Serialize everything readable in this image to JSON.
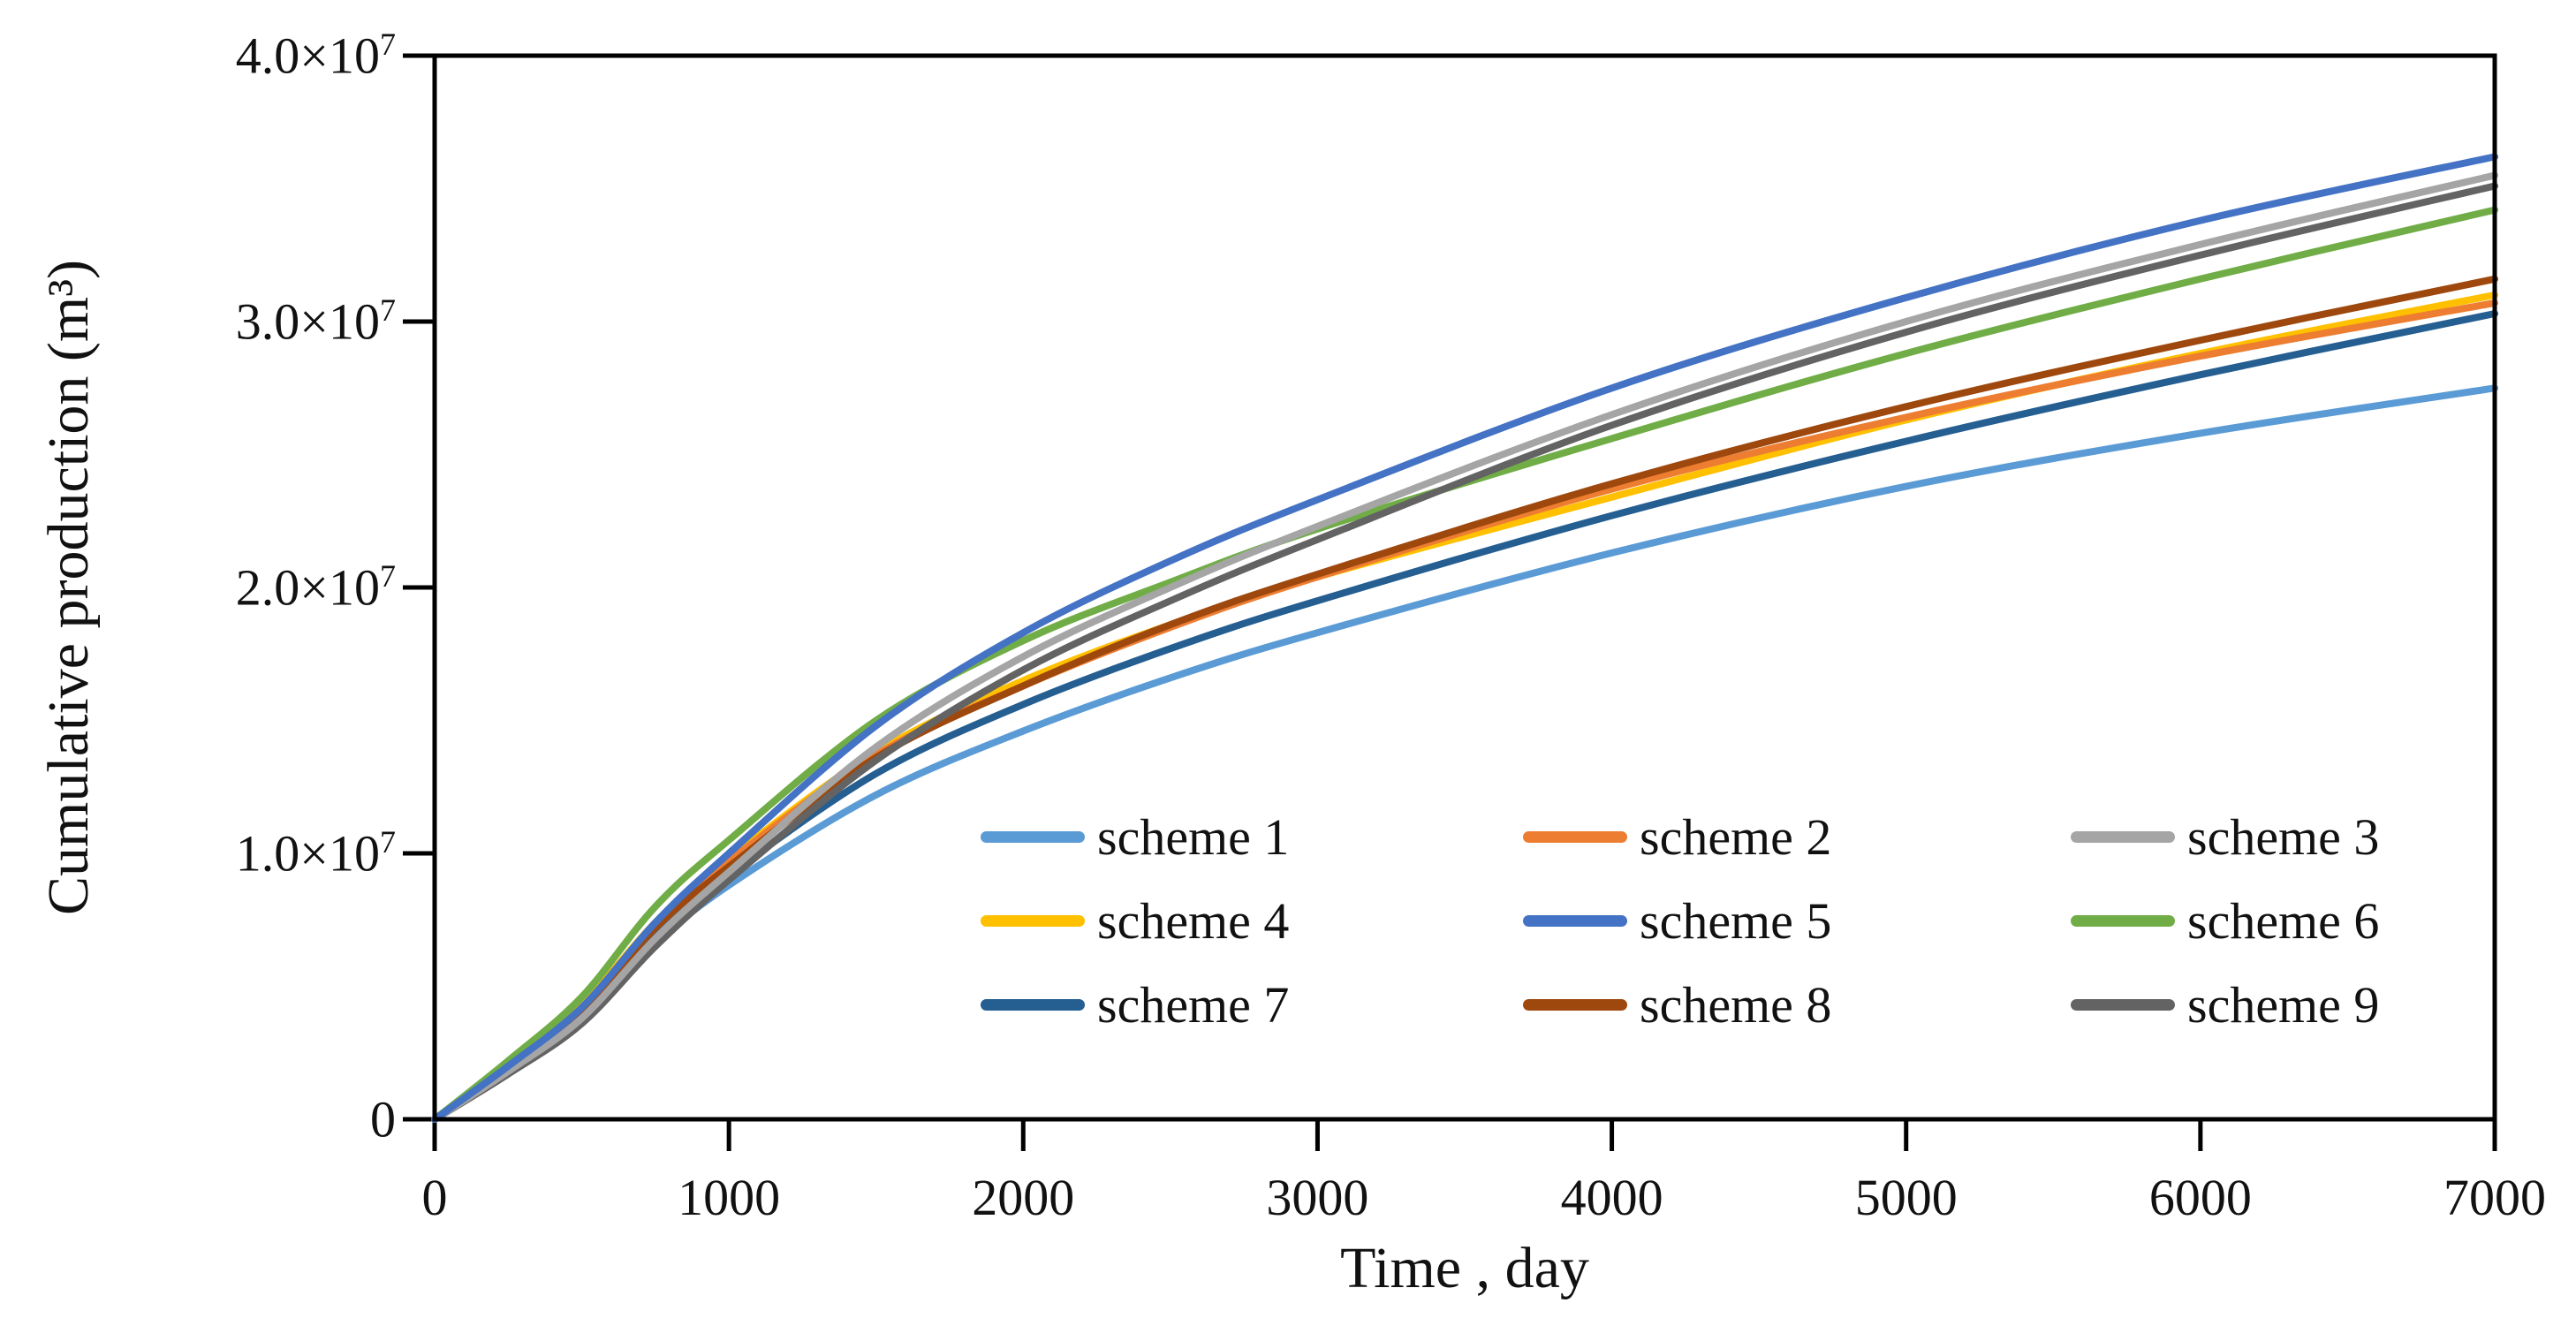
{
  "chart_data": {
    "type": "line",
    "title": "",
    "xlabel": "Time , day",
    "ylabel": "Cumulative production (m³)",
    "xlim": [
      0,
      7000
    ],
    "ylim": [
      0,
      40000000
    ],
    "grid": false,
    "legend_position": "inside plot, lower-middle, 3 columns, row-major",
    "axis_color": "#000000",
    "x_ticks": [
      {
        "v": 0,
        "label": "0"
      },
      {
        "v": 1000,
        "label": "1000"
      },
      {
        "v": 2000,
        "label": "2000"
      },
      {
        "v": 3000,
        "label": "3000"
      },
      {
        "v": 4000,
        "label": "4000"
      },
      {
        "v": 5000,
        "label": "5000"
      },
      {
        "v": 6000,
        "label": "6000"
      },
      {
        "v": 7000,
        "label": "7000"
      }
    ],
    "y_ticks": [
      {
        "v": 0,
        "label": "0"
      },
      {
        "v": 10000000,
        "label": "1.0×10^7"
      },
      {
        "v": 20000000,
        "label": "2.0×10^7"
      },
      {
        "v": 30000000,
        "label": "3.0×10^7"
      },
      {
        "v": 40000000,
        "label": "4.0×10^7"
      }
    ],
    "x": [
      0,
      250,
      500,
      750,
      1000,
      1500,
      2000,
      2500,
      3000,
      4000,
      5000,
      6000,
      7000
    ],
    "series": [
      {
        "name": "scheme 1",
        "color": "#5B9BD5",
        "values": [
          0,
          1800000,
          3700000,
          6600000,
          8800000,
          12200000,
          14600000,
          16600000,
          18300000,
          21300000,
          23800000,
          25800000,
          27500000
        ]
      },
      {
        "name": "scheme 2",
        "color": "#ED7D31",
        "values": [
          0,
          2000000,
          4200000,
          7300000,
          9700000,
          13700000,
          16300000,
          18500000,
          20400000,
          23700000,
          26400000,
          28700000,
          30700000
        ]
      },
      {
        "name": "scheme 3",
        "color": "#A5A5A5",
        "values": [
          0,
          1800000,
          3800000,
          6800000,
          9300000,
          14000000,
          17400000,
          20000000,
          22300000,
          26500000,
          30000000,
          32900000,
          35500000
        ]
      },
      {
        "name": "scheme 4",
        "color": "#FFC000",
        "values": [
          0,
          2100000,
          4300000,
          7400000,
          9800000,
          13800000,
          16500000,
          18600000,
          20400000,
          23400000,
          26300000,
          28800000,
          31000000
        ]
      },
      {
        "name": "scheme 5",
        "color": "#4472C4",
        "values": [
          0,
          2000000,
          4200000,
          7400000,
          10000000,
          14800000,
          18300000,
          21000000,
          23300000,
          27500000,
          30900000,
          33800000,
          36200000
        ]
      },
      {
        "name": "scheme 6",
        "color": "#70AD47",
        "values": [
          0,
          2200000,
          4600000,
          8000000,
          10500000,
          15000000,
          18000000,
          20200000,
          22200000,
          25600000,
          28800000,
          31600000,
          34200000
        ]
      },
      {
        "name": "scheme 7",
        "color": "#255E91",
        "values": [
          0,
          1900000,
          4000000,
          7000000,
          9200000,
          13000000,
          15600000,
          17700000,
          19500000,
          22700000,
          25500000,
          28000000,
          30300000
        ]
      },
      {
        "name": "scheme 8",
        "color": "#9E480E",
        "values": [
          0,
          2000000,
          4100000,
          7200000,
          9500000,
          13600000,
          16300000,
          18600000,
          20500000,
          23900000,
          26800000,
          29300000,
          31600000
        ]
      },
      {
        "name": "scheme 9",
        "color": "#636363",
        "values": [
          0,
          1700000,
          3600000,
          6500000,
          9000000,
          13500000,
          16900000,
          19500000,
          21800000,
          26100000,
          29600000,
          32500000,
          35100000
        ]
      }
    ]
  },
  "axes": {
    "x_title": "Time , day",
    "y_title": "Cumulative production (m³)"
  }
}
